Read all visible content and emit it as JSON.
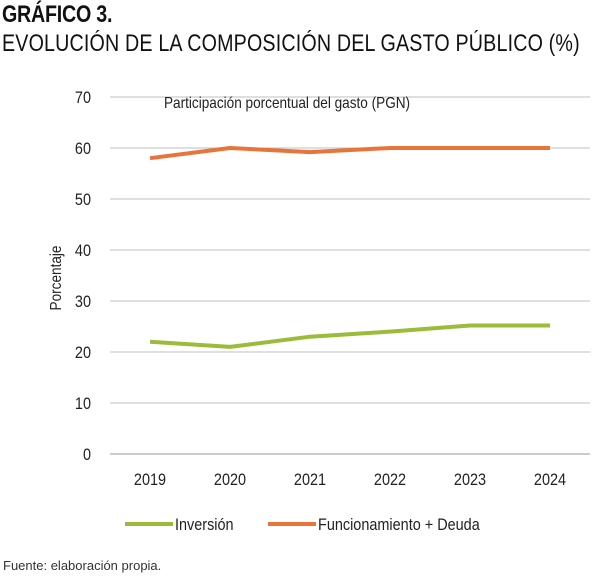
{
  "figure": {
    "label": "GRÁFICO 3.",
    "title": "EVOLUCIÓN DE LA COMPOSICIÓN DEL GASTO PÚBLICO (%)",
    "source": "Fuente: elaboración propia."
  },
  "chart_data": {
    "type": "line",
    "subtitle": "Participación porcentual del gasto (PGN)",
    "ylabel": "Porcentaje",
    "xlabel": "",
    "categories": [
      "2019",
      "2020",
      "2021",
      "2022",
      "2023",
      "2024"
    ],
    "ylim": [
      0,
      70
    ],
    "yticks": [
      0,
      10,
      20,
      30,
      40,
      50,
      60,
      70
    ],
    "grid": true,
    "legend": "bottom",
    "series": [
      {
        "name": "Inversión",
        "color": "#9bbb3b",
        "values": [
          22,
          21,
          23,
          24,
          25.2,
          25.2
        ]
      },
      {
        "name": "Funcionamiento + Deuda",
        "color": "#e8743b",
        "values": [
          58,
          60,
          59.2,
          60,
          60,
          60
        ]
      }
    ]
  }
}
